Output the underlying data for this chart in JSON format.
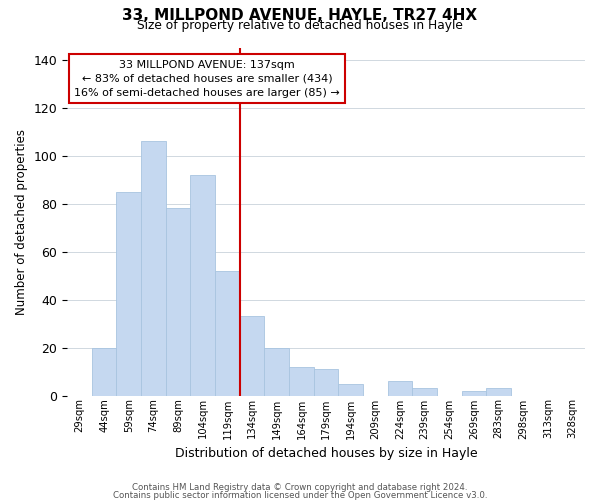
{
  "title": "33, MILLPOND AVENUE, HAYLE, TR27 4HX",
  "subtitle": "Size of property relative to detached houses in Hayle",
  "xlabel": "Distribution of detached houses by size in Hayle",
  "ylabel": "Number of detached properties",
  "bar_labels": [
    "29sqm",
    "44sqm",
    "59sqm",
    "74sqm",
    "89sqm",
    "104sqm",
    "119sqm",
    "134sqm",
    "149sqm",
    "164sqm",
    "179sqm",
    "194sqm",
    "209sqm",
    "224sqm",
    "239sqm",
    "254sqm",
    "269sqm",
    "283sqm",
    "298sqm",
    "313sqm",
    "328sqm"
  ],
  "bar_values": [
    0,
    20,
    85,
    106,
    78,
    92,
    52,
    33,
    20,
    12,
    11,
    5,
    0,
    6,
    3,
    0,
    2,
    3,
    0,
    0,
    0
  ],
  "bar_color": "#c5d8f0",
  "bar_edge_color": "#a8c4e0",
  "vline_color": "#cc0000",
  "annotation_line1": "33 MILLPOND AVENUE: 137sqm",
  "annotation_line2": "← 83% of detached houses are smaller (434)",
  "annotation_line3": "16% of semi-detached houses are larger (85) →",
  "annotation_box_color": "#ffffff",
  "annotation_box_edge": "#cc0000",
  "ylim": [
    0,
    145
  ],
  "footer1": "Contains HM Land Registry data © Crown copyright and database right 2024.",
  "footer2": "Contains public sector information licensed under the Open Government Licence v3.0.",
  "bg_color": "#ffffff",
  "grid_color": "#d0d8e0",
  "vline_bar_index": 7
}
